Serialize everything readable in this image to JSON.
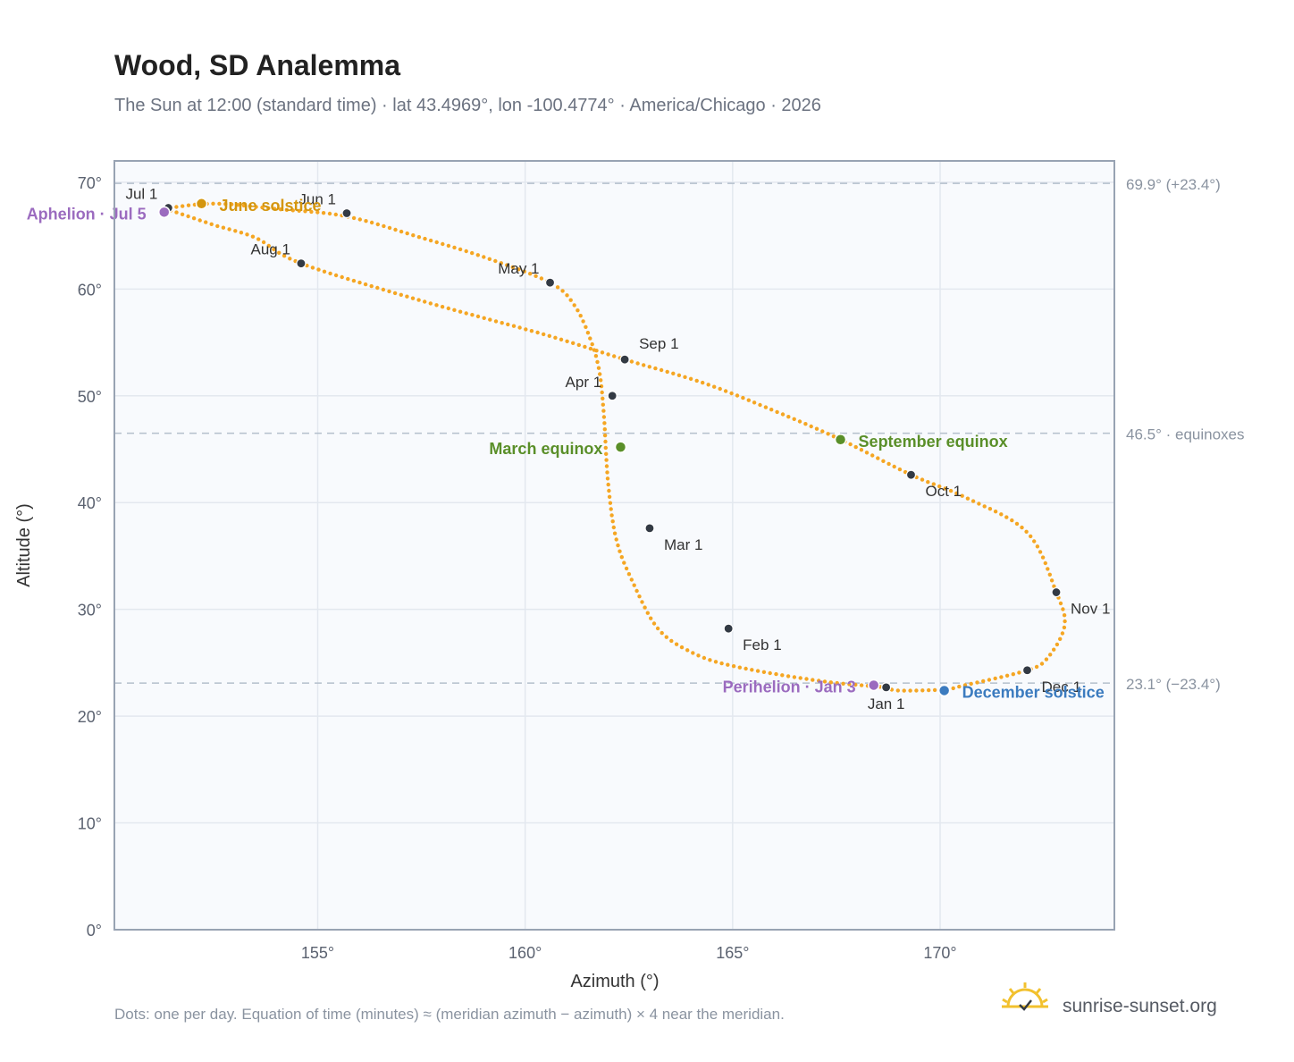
{
  "title": "Wood, SD Analemma",
  "subtitle": "The Sun at 12:00 (standard time) · lat 43.4969°, lon -100.4774° · America/Chicago · 2026",
  "footnote": "Dots: one per day. Equation of time (minutes) ≈ (meridian azimuth − azimuth) × 4 near the meridian.",
  "brand": "sunrise-sunset.org",
  "colors": {
    "curve": "#f5a623",
    "month_dot": "#333a44",
    "solstice_june": "#d4960f",
    "equinox": "#5a8f29",
    "apsis": "#9b6bbf",
    "solstice_december": "#3b7bbf",
    "plot_bg": "#f8fafd",
    "grid": "#e3e8ef",
    "ref_line": "#b4c0cc",
    "frame": "#98a3b3",
    "logo": "#f2c12e"
  },
  "chart_data": {
    "type": "scatter",
    "title": "Wood, SD Analemma",
    "subtitle": "The Sun at 12:00 (standard time) · lat 43.4969°, lon -100.4774° · America/Chicago · 2026",
    "xlabel": "Azimuth (°)",
    "ylabel": "Altitude (°)",
    "xlim": [
      150.1,
      174.2
    ],
    "ylim": [
      0,
      72
    ],
    "xticks": [
      155,
      160,
      165,
      170
    ],
    "xtick_labels": [
      "155°",
      "160°",
      "165°",
      "170°"
    ],
    "yticks": [
      0,
      10,
      20,
      30,
      40,
      50,
      60,
      70
    ],
    "ytick_labels": [
      "0°",
      "10°",
      "20°",
      "30°",
      "40°",
      "50°",
      "60°",
      "70°"
    ],
    "grid": true,
    "reference_lines": [
      {
        "y": 69.9,
        "label": "69.9° (+23.4°)"
      },
      {
        "y": 46.5,
        "label": "46.5° · equinoxes"
      },
      {
        "y": 23.1,
        "label": "23.1° (−23.4°)"
      }
    ],
    "series": [
      {
        "marker": "daily-dot",
        "points": [
          [
            168.7,
            22.7
          ],
          [
            167.1,
            23.3
          ],
          [
            165.0,
            24.7
          ],
          [
            164.0,
            26.0
          ],
          [
            163.2,
            28.2
          ],
          [
            162.6,
            32.5
          ],
          [
            162.2,
            36.5
          ],
          [
            162.0,
            41.8
          ],
          [
            161.9,
            48.0
          ],
          [
            161.8,
            52.0
          ],
          [
            161.6,
            55.0
          ],
          [
            161.2,
            58.4
          ],
          [
            160.6,
            60.6
          ],
          [
            159.0,
            63.0
          ],
          [
            157.5,
            64.8
          ],
          [
            155.7,
            66.8
          ],
          [
            154.0,
            67.5
          ],
          [
            152.5,
            68.0
          ],
          [
            151.3,
            67.5
          ],
          [
            151.5,
            67.3
          ],
          [
            152.5,
            66.0
          ],
          [
            153.5,
            64.8
          ],
          [
            154.6,
            62.4
          ],
          [
            157.5,
            58.9
          ],
          [
            160.5,
            55.7
          ],
          [
            162.4,
            53.4
          ],
          [
            164.3,
            51.2
          ],
          [
            166.0,
            48.6
          ],
          [
            167.6,
            45.9
          ],
          [
            169.3,
            42.6
          ],
          [
            170.6,
            40.5
          ],
          [
            172.1,
            37.2
          ],
          [
            172.8,
            31.6
          ],
          [
            173.0,
            28.5
          ],
          [
            172.6,
            25.5
          ],
          [
            172.1,
            24.3
          ],
          [
            170.6,
            22.9
          ],
          [
            170.1,
            22.5
          ],
          [
            169.0,
            22.4
          ],
          [
            168.7,
            22.7
          ]
        ]
      }
    ],
    "month_markers": [
      {
        "label": "Jan 1",
        "x": 168.7,
        "y": 22.7,
        "anchor": "below"
      },
      {
        "label": "Feb 1",
        "x": 164.9,
        "y": 28.2,
        "anchor": "below-right"
      },
      {
        "label": "Mar 1",
        "x": 163.0,
        "y": 37.6,
        "anchor": "below-right"
      },
      {
        "label": "Apr 1",
        "x": 162.1,
        "y": 50.0,
        "anchor": "above-left"
      },
      {
        "label": "May 1",
        "x": 160.6,
        "y": 60.6,
        "anchor": "above-left"
      },
      {
        "label": "Jun 1",
        "x": 155.7,
        "y": 67.1,
        "anchor": "above-left"
      },
      {
        "label": "Jul 1",
        "x": 151.4,
        "y": 67.6,
        "anchor": "above-left"
      },
      {
        "label": "Aug 1",
        "x": 154.6,
        "y": 62.4,
        "anchor": "above-left"
      },
      {
        "label": "Sep 1",
        "x": 162.4,
        "y": 53.4,
        "anchor": "above-right"
      },
      {
        "label": "Oct 1",
        "x": 169.3,
        "y": 42.6,
        "anchor": "below-right"
      },
      {
        "label": "Nov 1",
        "x": 172.8,
        "y": 31.6,
        "anchor": "below-right"
      },
      {
        "label": "Dec 1",
        "x": 172.1,
        "y": 24.3,
        "anchor": "below-right"
      }
    ],
    "events": [
      {
        "label": "June solstice",
        "x": 152.2,
        "y": 68.0,
        "color": "solstice_june",
        "anchor": "right"
      },
      {
        "label": "Aphelion · Jul 5",
        "x": 151.3,
        "y": 67.2,
        "color": "apsis",
        "anchor": "left"
      },
      {
        "label": "March equinox",
        "x": 162.3,
        "y": 45.2,
        "color": "equinox",
        "anchor": "left"
      },
      {
        "label": "September equinox",
        "x": 167.6,
        "y": 45.9,
        "color": "equinox",
        "anchor": "right"
      },
      {
        "label": "Perihelion · Jan 3",
        "x": 168.4,
        "y": 22.9,
        "color": "apsis",
        "anchor": "left"
      },
      {
        "label": "December solstice",
        "x": 170.1,
        "y": 22.4,
        "color": "solstice_december",
        "anchor": "right"
      }
    ]
  }
}
